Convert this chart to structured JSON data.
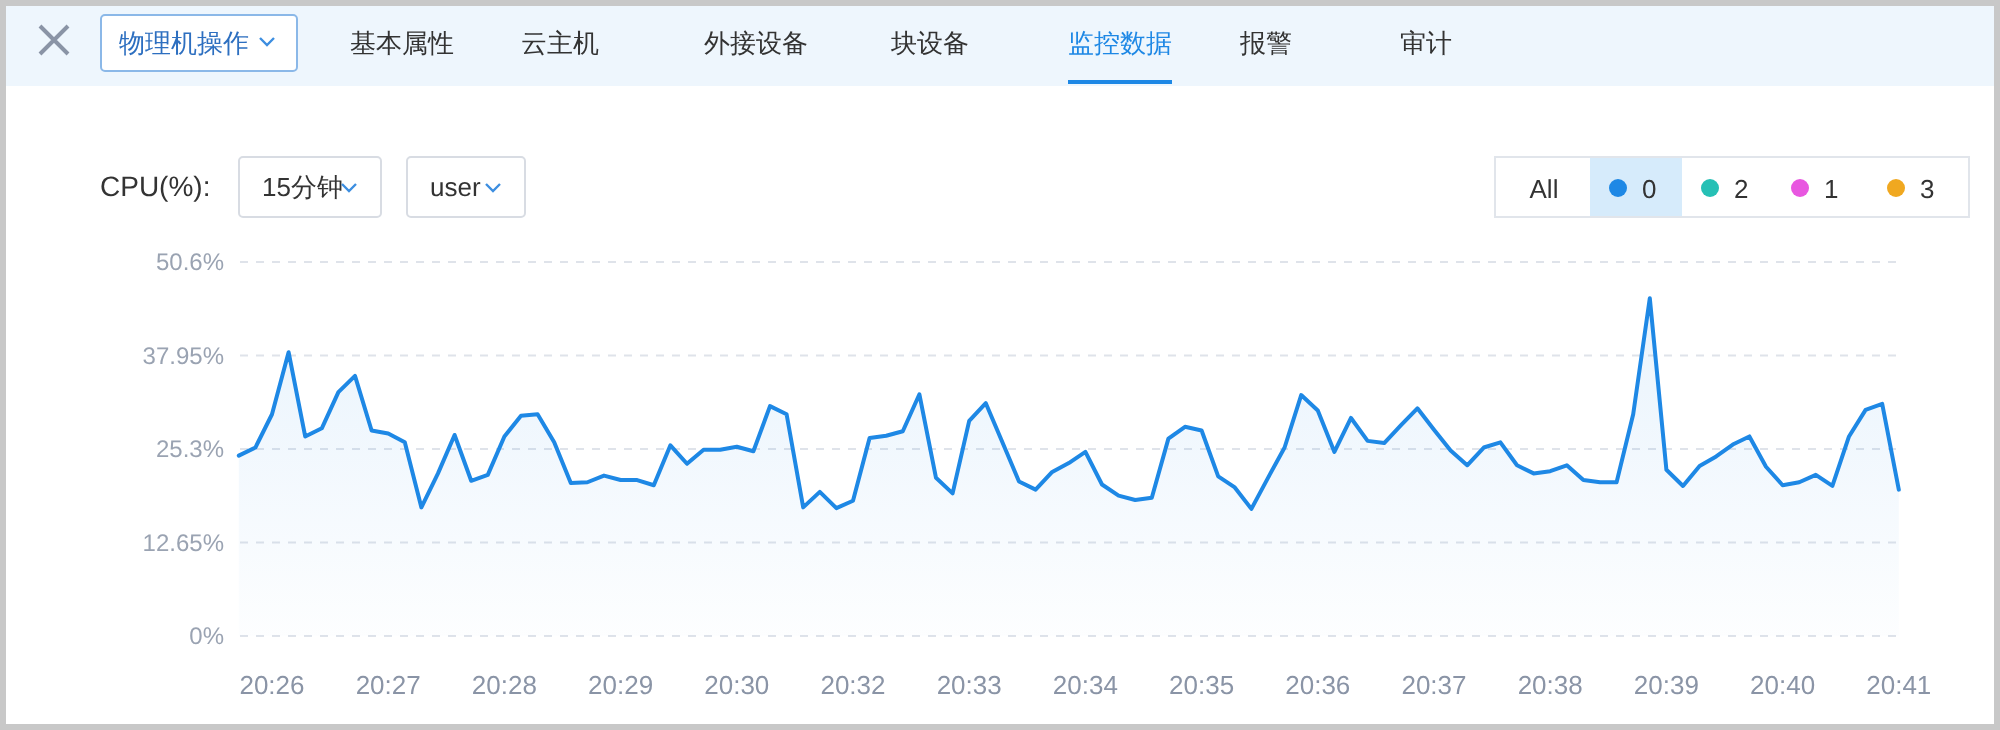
{
  "chart_data": {
    "type": "area",
    "title": "CPU(%):",
    "annotations": [
      "物理机操作",
      "基本属性",
      "云主机",
      "外接设备",
      "块设备",
      "监控数据",
      "报警",
      "审计",
      "15分钟",
      "user",
      "All"
    ],
    "categories": [
      null,
      null,
      "20:26",
      null,
      null,
      null,
      null,
      null,
      null,
      "20:27",
      null,
      null,
      null,
      null,
      null,
      null,
      "20:28",
      null,
      null,
      null,
      null,
      null,
      null,
      "20:29",
      null,
      null,
      null,
      null,
      null,
      null,
      "20:30",
      null,
      null,
      null,
      null,
      null,
      null,
      "20:32",
      null,
      null,
      null,
      null,
      null,
      null,
      "20:33",
      null,
      null,
      null,
      null,
      null,
      null,
      "20:34",
      null,
      null,
      null,
      null,
      null,
      null,
      "20:35",
      null,
      null,
      null,
      null,
      null,
      null,
      "20:36",
      null,
      null,
      null,
      null,
      null,
      null,
      "20:37",
      null,
      null,
      null,
      null,
      null,
      null,
      "20:38",
      null,
      null,
      null,
      null,
      null,
      null,
      "20:39",
      null,
      null,
      null,
      null,
      null,
      null,
      "20:40",
      null,
      null,
      null,
      null,
      null,
      null,
      "20:41"
    ],
    "ylim": [
      0,
      50.6
    ],
    "yticks": [
      {
        "value": 0,
        "label": "0%"
      },
      {
        "value": 12.65,
        "label": "12.65%"
      },
      {
        "value": 25.3,
        "label": "25.3%"
      },
      {
        "value": 37.95,
        "label": "37.95%"
      },
      {
        "value": 50.6,
        "label": "50.6%"
      }
    ],
    "grid": "y",
    "legend": "top right",
    "series": [
      {
        "name": "0",
        "color": "#1e88e5",
        "values": [
          24.4,
          25.5,
          30,
          38.4,
          27,
          28.1,
          33,
          35.2,
          27.8,
          27.4,
          26.2,
          17.4,
          22,
          27.2,
          21,
          21.8,
          27,
          29.8,
          30,
          26.2,
          20.7,
          20.8,
          21.7,
          21.1,
          21.1,
          20.4,
          25.8,
          23.3,
          25.2,
          25.2,
          25.6,
          25,
          31.1,
          30,
          17.4,
          19.5,
          17.3,
          18.3,
          26.8,
          27.1,
          27.7,
          32.7,
          21.4,
          19.3,
          29.1,
          31.5,
          26.2,
          20.9,
          19.8,
          22.2,
          23.4,
          24.9,
          20.5,
          19,
          18.4,
          18.7,
          26.7,
          28.3,
          27.8,
          21.6,
          20.1,
          17.2,
          21.4,
          25.5,
          32.6,
          30.5,
          24.9,
          29.5,
          26.4,
          26.1,
          28.5,
          30.8,
          27.9,
          25.1,
          23.1,
          25.5,
          26.2,
          23.1,
          22,
          22.3,
          23.1,
          21.1,
          20.8,
          20.8,
          30,
          45.7,
          22.5,
          20.3,
          23,
          24.3,
          25.9,
          27,
          22.9,
          20.4,
          20.8,
          21.8,
          20.3,
          27,
          30.6,
          31.4,
          19.8
        ]
      },
      {
        "name": "2",
        "color": "#26c0b5",
        "values": [
          null,
          null,
          null,
          null,
          null,
          null,
          null,
          null,
          null,
          null,
          null,
          null,
          null,
          null,
          null,
          null,
          null,
          null,
          null,
          null,
          null,
          null,
          null,
          null,
          null,
          null,
          null,
          null,
          null,
          null,
          null,
          null,
          null,
          null,
          null,
          null,
          null,
          null,
          null,
          null,
          null,
          null,
          null,
          null,
          null,
          null,
          null,
          null,
          null,
          null,
          null,
          null,
          null,
          null,
          null,
          null,
          null,
          null,
          null,
          null,
          null,
          null,
          null,
          null,
          null,
          null,
          null,
          null,
          null,
          null,
          null,
          null,
          null,
          null,
          null,
          null,
          null,
          null,
          null,
          null,
          null,
          null,
          null,
          null,
          null,
          null,
          null,
          null,
          null,
          null,
          null,
          null,
          null,
          null,
          null,
          null,
          null,
          null,
          null,
          null,
          null
        ]
      },
      {
        "name": "1",
        "color": "#e857e0",
        "values": [
          null,
          null,
          null,
          null,
          null,
          null,
          null,
          null,
          null,
          null,
          null,
          null,
          null,
          null,
          null,
          null,
          null,
          null,
          null,
          null,
          null,
          null,
          null,
          null,
          null,
          null,
          null,
          null,
          null,
          null,
          null,
          null,
          null,
          null,
          null,
          null,
          null,
          null,
          null,
          null,
          null,
          null,
          null,
          null,
          null,
          null,
          null,
          null,
          null,
          null,
          null,
          null,
          null,
          null,
          null,
          null,
          null,
          null,
          null,
          null,
          null,
          null,
          null,
          null,
          null,
          null,
          null,
          null,
          null,
          null,
          null,
          null,
          null,
          null,
          null,
          null,
          null,
          null,
          null,
          null,
          null,
          null,
          null,
          null,
          null,
          null,
          null,
          null,
          null,
          null,
          null,
          null,
          null,
          null,
          null,
          null,
          null,
          null,
          null,
          null,
          null
        ]
      },
      {
        "name": "3",
        "color": "#f0a820",
        "values": [
          null,
          null,
          null,
          null,
          null,
          null,
          null,
          null,
          null,
          null,
          null,
          null,
          null,
          null,
          null,
          null,
          null,
          null,
          null,
          null,
          null,
          null,
          null,
          null,
          null,
          null,
          null,
          null,
          null,
          null,
          null,
          null,
          null,
          null,
          null,
          null,
          null,
          null,
          null,
          null,
          null,
          null,
          null,
          null,
          null,
          null,
          null,
          null,
          null,
          null,
          null,
          null,
          null,
          null,
          null,
          null,
          null,
          null,
          null,
          null,
          null,
          null,
          null,
          null,
          null,
          null,
          null,
          null,
          null,
          null,
          null,
          null,
          null,
          null,
          null,
          null,
          null,
          null,
          null,
          null,
          null,
          null,
          null,
          null,
          null,
          null,
          null,
          null,
          null,
          null,
          null,
          null,
          null,
          null,
          null,
          null,
          null,
          null,
          null,
          null,
          null
        ]
      }
    ]
  }
}
